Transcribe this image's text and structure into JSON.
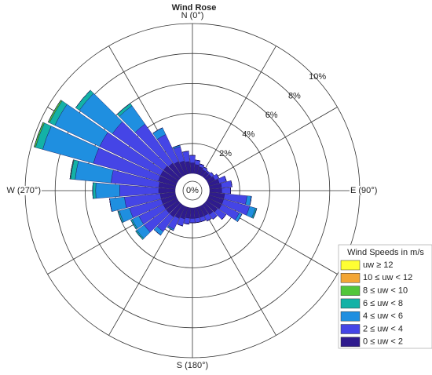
{
  "chart_data": {
    "type": "windrose",
    "title": "Wind Rose",
    "legend_title": "Wind Speeds in m/s",
    "directions": [
      0,
      10,
      20,
      30,
      40,
      50,
      60,
      70,
      80,
      90,
      100,
      110,
      120,
      130,
      140,
      150,
      160,
      170,
      180,
      190,
      200,
      210,
      220,
      230,
      240,
      250,
      260,
      270,
      280,
      290,
      300,
      310,
      320,
      330,
      340,
      350
    ],
    "direction_labels": [
      {
        "value": 0,
        "label": "N (0°)"
      },
      {
        "value": 90,
        "label": "E (90°)"
      },
      {
        "value": 180,
        "label": "S (180°)"
      },
      {
        "value": 270,
        "label": "W (270°)"
      }
    ],
    "rlim": [
      0,
      10
    ],
    "rticks": [
      {
        "value": 0,
        "label": "0%"
      },
      {
        "value": 2,
        "label": "2%"
      },
      {
        "value": 4,
        "label": "4%"
      },
      {
        "value": 6,
        "label": "6%"
      },
      {
        "value": 8,
        "label": "8%"
      },
      {
        "value": 10,
        "label": "10%"
      }
    ],
    "series": [
      {
        "name": "0 ≤ uw < 2",
        "color": "#2f1b8e",
        "values": [
          0.7,
          0.6,
          0.5,
          0.4,
          0.4,
          0.4,
          0.5,
          0.7,
          0.8,
          0.8,
          1.0,
          1.0,
          1.0,
          0.9,
          0.8,
          0.7,
          0.7,
          0.7,
          0.7,
          0.7,
          0.8,
          0.9,
          1.0,
          1.0,
          1.0,
          1.0,
          1.0,
          1.1,
          1.1,
          1.2,
          1.2,
          1.2,
          1.1,
          1.0,
          0.9,
          0.8
        ]
      },
      {
        "name": "2 ≤ uw < 4",
        "color": "#4545e6",
        "values": [
          0.5,
          0.3,
          0.2,
          0.2,
          0.1,
          0.2,
          0.3,
          0.5,
          0.7,
          0.6,
          1.5,
          1.8,
          1.3,
          0.7,
          0.4,
          0.4,
          0.3,
          0.3,
          0.3,
          0.4,
          0.5,
          0.8,
          1.2,
          1.8,
          1.8,
          2.2,
          2.4,
          2.6,
          3.2,
          4.5,
          4.5,
          4.2,
          3.2,
          2.0,
          1.0,
          0.7
        ]
      },
      {
        "name": "4 ≤ uw < 6",
        "color": "#1f8fe0",
        "values": [
          0,
          0,
          0,
          0,
          0,
          0,
          0,
          0,
          0,
          0,
          0.3,
          0.4,
          0.2,
          0,
          0,
          0,
          0,
          0,
          0,
          0,
          0,
          0.1,
          0.3,
          0.6,
          0.5,
          0.7,
          1.0,
          1.6,
          2.4,
          3.5,
          3.3,
          2.7,
          1.5,
          0.5,
          0.1,
          0
        ]
      },
      {
        "name": "6 ≤ uw < 8",
        "color": "#13b2a6",
        "values": [
          0,
          0,
          0,
          0,
          0,
          0,
          0,
          0,
          0,
          0,
          0,
          0.1,
          0,
          0,
          0,
          0,
          0,
          0,
          0,
          0,
          0,
          0,
          0,
          0.1,
          0.1,
          0.1,
          0,
          0.2,
          0.3,
          0.5,
          0.4,
          0.3,
          0.2,
          0,
          0,
          0
        ]
      },
      {
        "name": "8 ≤ uw < 10",
        "color": "#52c63a",
        "values": [
          0,
          0,
          0,
          0,
          0,
          0,
          0,
          0,
          0,
          0,
          0,
          0,
          0,
          0,
          0,
          0,
          0,
          0,
          0,
          0,
          0,
          0,
          0,
          0,
          0,
          0,
          0,
          0,
          0.05,
          0.1,
          0.1,
          0,
          0,
          0,
          0,
          0
        ]
      },
      {
        "name": "10 ≤ uw < 12",
        "color": "#f3a635",
        "values": [
          0,
          0,
          0,
          0,
          0,
          0,
          0,
          0,
          0,
          0,
          0,
          0,
          0,
          0,
          0,
          0,
          0,
          0,
          0,
          0,
          0,
          0,
          0,
          0,
          0,
          0,
          0,
          0,
          0,
          0,
          0,
          0,
          0,
          0,
          0,
          0
        ]
      },
      {
        "name": "uw ≥ 12",
        "color": "#ffff33",
        "values": [
          0,
          0,
          0,
          0,
          0,
          0,
          0,
          0,
          0,
          0,
          0,
          0,
          0,
          0,
          0,
          0,
          0,
          0,
          0,
          0,
          0,
          0,
          0,
          0,
          0,
          0,
          0,
          0,
          0,
          0,
          0,
          0,
          0,
          0,
          0,
          0
        ]
      }
    ]
  }
}
